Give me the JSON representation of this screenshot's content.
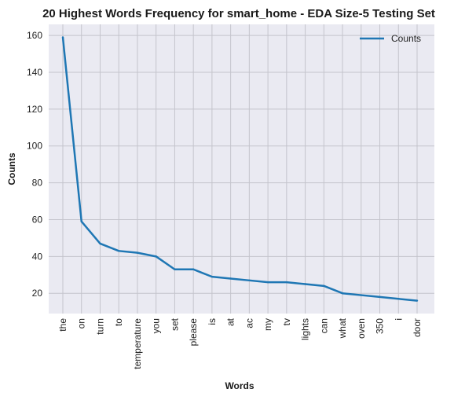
{
  "chart_data": {
    "type": "line",
    "title": "20 Highest Words Frequency for smart_home - EDA Size-5 Testing Set",
    "xlabel": "Words",
    "ylabel": "Counts",
    "categories": [
      "the",
      "on",
      "turn",
      "to",
      "temperature",
      "you",
      "set",
      "please",
      "is",
      "at",
      "ac",
      "my",
      "tv",
      "lights",
      "can",
      "what",
      "oven",
      "350",
      "i",
      "door"
    ],
    "series": [
      {
        "name": "Counts",
        "values": [
          159,
          59,
          47,
          43,
          42,
          40,
          33,
          33,
          29,
          28,
          27,
          26,
          26,
          25,
          24,
          20,
          19,
          18,
          17,
          16
        ]
      }
    ],
    "ylim": [
      9,
      166
    ],
    "yticks": [
      20,
      40,
      60,
      80,
      100,
      120,
      140,
      160
    ],
    "grid": true,
    "legend_position": "top-right",
    "colors": {
      "line": "#1f77b4",
      "background": "#eaeaf2",
      "grid": "#c4c4cc"
    }
  }
}
